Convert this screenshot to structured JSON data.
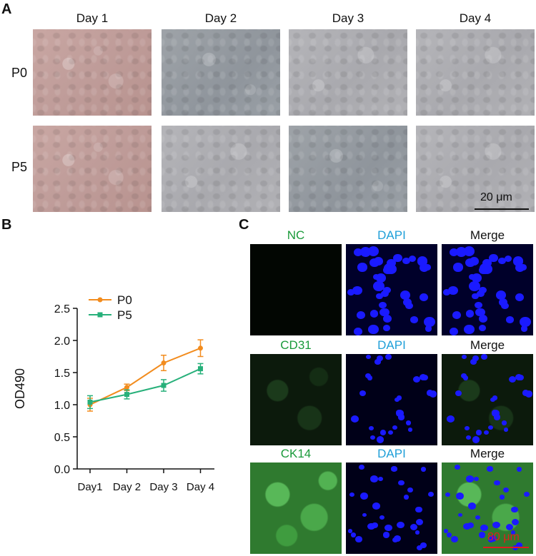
{
  "panelA": {
    "letter": "A",
    "days": [
      "Day 1",
      "Day 2",
      "Day 3",
      "Day 4"
    ],
    "rows": [
      "P0",
      "P5"
    ],
    "scale_label": "20 μm"
  },
  "panelB": {
    "letter": "B"
  },
  "panelC": {
    "letter": "C",
    "rows": [
      {
        "marker": "NC",
        "dapi": "DAPI",
        "merge": "Merge"
      },
      {
        "marker": "CD31",
        "dapi": "DAPI",
        "merge": "Merge"
      },
      {
        "marker": "CK14",
        "dapi": "DAPI",
        "merge": "Merge"
      }
    ],
    "scale_label": "80 μm"
  },
  "chart_data": {
    "type": "line",
    "categories": [
      "Day1",
      "Day 2",
      "Day 3",
      "Day 4"
    ],
    "series": [
      {
        "name": "P0",
        "values": [
          1.0,
          1.27,
          1.65,
          1.88
        ],
        "errors": [
          0.1,
          0.05,
          0.12,
          0.13
        ],
        "color": "#f28c1e",
        "marker": "circle"
      },
      {
        "name": "P5",
        "values": [
          1.04,
          1.16,
          1.3,
          1.56
        ],
        "errors": [
          0.1,
          0.07,
          0.09,
          0.08
        ],
        "color": "#27b07a",
        "marker": "square"
      }
    ],
    "ylabel": "OD490",
    "ylim": [
      0.0,
      2.5
    ],
    "yticks": [
      "0.0",
      "0.5",
      "1.0",
      "1.5",
      "2.0",
      "2.5"
    ],
    "legend": "top-left",
    "grid": false
  }
}
